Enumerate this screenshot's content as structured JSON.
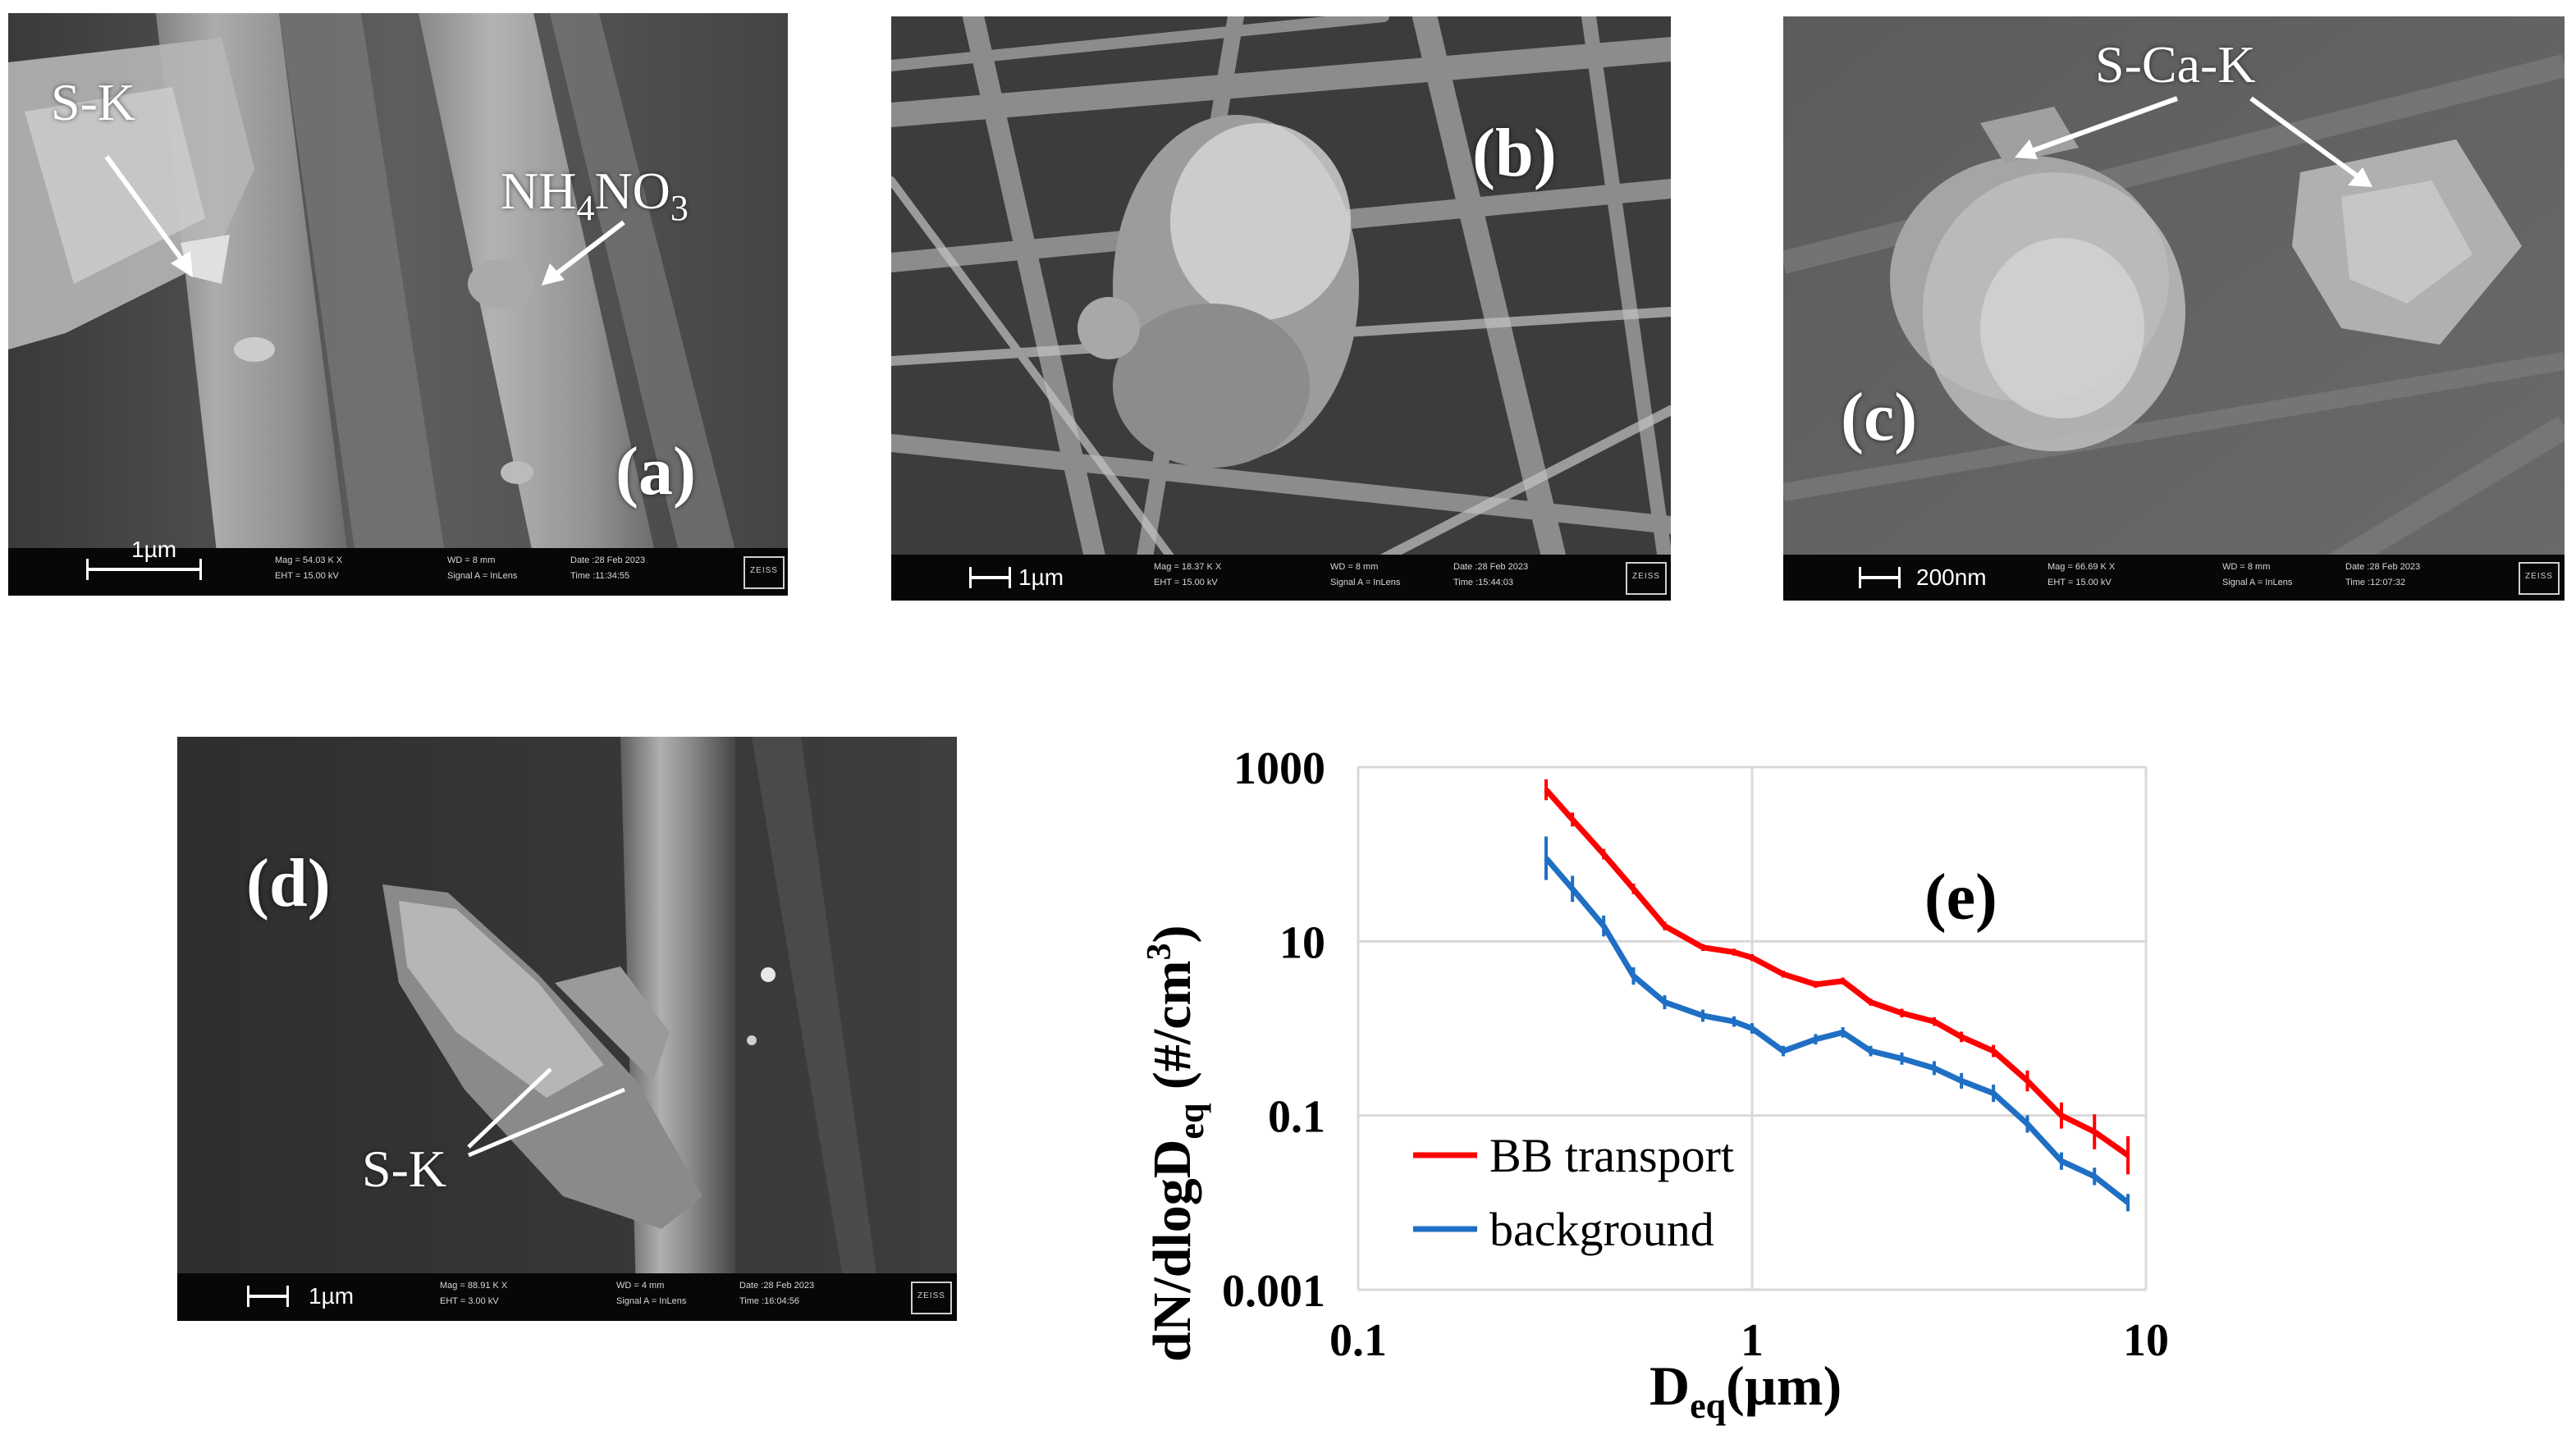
{
  "panels": [
    {
      "label": "(a)",
      "annotations": {
        "sk": "S-K",
        "nh4no3": {
          "a": "NH",
          "b": "4",
          "c": "NO",
          "d": "3"
        }
      },
      "scalebar": "1µm",
      "meta": [
        "Mag = 54.03 K X",
        "EHT = 15.00 kV",
        "WD = 8 mm",
        "Signal A = InLens",
        "Date :28 Feb 2023",
        "Time :11:34:55"
      ]
    },
    {
      "label": "(b)",
      "scalebar": "1µm",
      "meta": [
        "Mag = 18.37 K X",
        "EHT = 15.00 kV",
        "WD = 8 mm",
        "Signal A = InLens",
        "Date :28 Feb 2023",
        "Time :15:44:03"
      ]
    },
    {
      "label": "(c)",
      "annotations": {
        "scak": "S-Ca-K"
      },
      "scalebar": "200nm",
      "meta": [
        "Mag = 66.69 K X",
        "EHT = 15.00 kV",
        "WD = 8 mm",
        "Signal A = InLens",
        "Date :28 Feb 2023",
        "Time :12:07:32"
      ]
    },
    {
      "label": "(d)",
      "annotations": {
        "sk": "S-K"
      },
      "scalebar": "1µm",
      "meta": [
        "Mag = 88.91 K X",
        "EHT = 3.00 kV",
        "WD = 4 mm",
        "Signal A = InLens",
        "Date :28 Feb 2023",
        "Time :16:04:56"
      ]
    }
  ],
  "zeiss_logo": "ZEISS",
  "chart_data": {
    "type": "line",
    "panel_label": "(e)",
    "xscale": "log",
    "yscale": "log",
    "xlim": [
      0.1,
      10
    ],
    "ylim": [
      0.001,
      1000
    ],
    "xticks": [
      "0.1",
      "1",
      "10"
    ],
    "yticks": [
      "0.001",
      "0.1",
      "10",
      "1000"
    ],
    "xlabel": {
      "main": "D",
      "sub": "eq",
      "rest": "(µm)"
    },
    "ylabel": {
      "main": "dN/dlogD",
      "sub": "eq",
      "rest": " (#/cm",
      "sup": "3",
      "end": ")"
    },
    "grid": true,
    "legend_position": "bottom-left",
    "series": [
      {
        "name": "BB transport",
        "color": "#ff0000",
        "x": [
          0.3,
          0.35,
          0.42,
          0.5,
          0.6,
          0.75,
          0.9,
          1.0,
          1.2,
          1.45,
          1.7,
          2.0,
          2.4,
          2.9,
          3.4,
          4.1,
          5.0,
          6.1,
          7.4,
          9.0
        ],
        "y": [
          550,
          250,
          100,
          40,
          15,
          8.5,
          7.5,
          6.5,
          4.2,
          3.2,
          3.5,
          2.0,
          1.5,
          1.2,
          0.8,
          0.55,
          0.25,
          0.1,
          0.065,
          0.035
        ],
        "error": [
          0.12,
          0.08,
          0.06,
          0.06,
          0.05,
          0.04,
          0.04,
          0.04,
          0.04,
          0.04,
          0.04,
          0.04,
          0.05,
          0.05,
          0.06,
          0.07,
          0.12,
          0.15,
          0.2,
          0.22
        ]
      },
      {
        "name": "background",
        "color": "#1f6fc4",
        "x": [
          0.3,
          0.35,
          0.42,
          0.5,
          0.6,
          0.75,
          0.9,
          1.0,
          1.2,
          1.45,
          1.7,
          2.0,
          2.4,
          2.9,
          3.4,
          4.1,
          5.0,
          6.1,
          7.4,
          9.0
        ],
        "y": [
          90,
          40,
          15,
          4.0,
          2.0,
          1.4,
          1.2,
          1.0,
          0.55,
          0.75,
          0.9,
          0.55,
          0.45,
          0.35,
          0.25,
          0.18,
          0.08,
          0.03,
          0.02,
          0.01
        ],
        "error": [
          0.25,
          0.15,
          0.12,
          0.1,
          0.08,
          0.07,
          0.06,
          0.06,
          0.06,
          0.06,
          0.06,
          0.06,
          0.07,
          0.08,
          0.09,
          0.1,
          0.1,
          0.1,
          0.1,
          0.1
        ]
      }
    ]
  }
}
